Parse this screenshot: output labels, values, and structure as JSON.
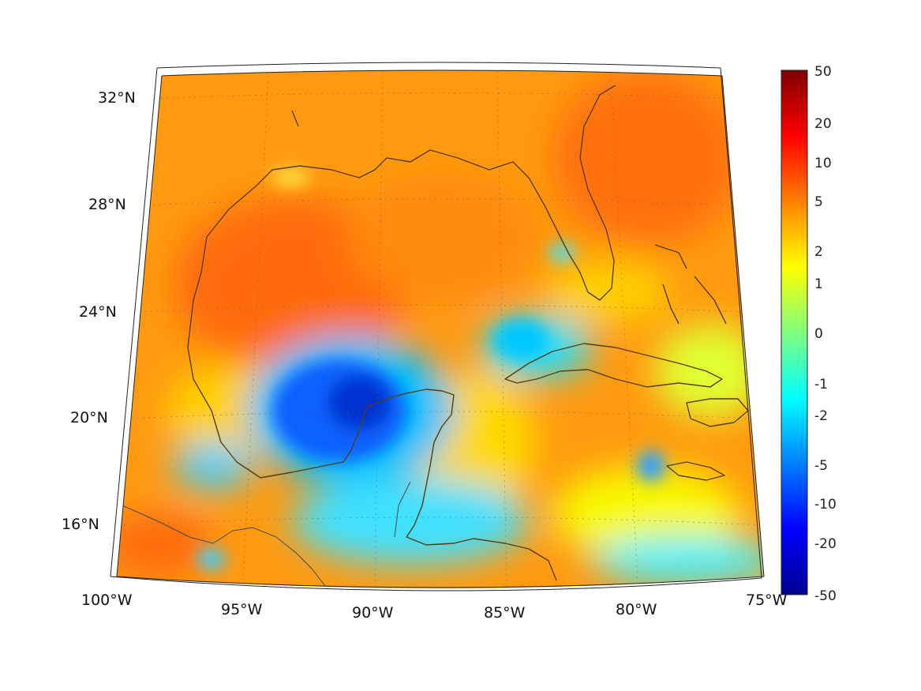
{
  "map": {
    "projection": "conic",
    "lon_range": [
      -100,
      -75
    ],
    "lat_range": [
      14.5,
      32.5
    ],
    "lon_ticks": [
      {
        "lon": -100,
        "label": "100°W"
      },
      {
        "lon": -95,
        "label": "95°W"
      },
      {
        "lon": -90,
        "label": "90°W"
      },
      {
        "lon": -85,
        "label": "85°W"
      },
      {
        "lon": -80,
        "label": "80°W"
      },
      {
        "lon": -75,
        "label": "75°W"
      }
    ],
    "lat_ticks": [
      {
        "lat": 16,
        "label": "16°N"
      },
      {
        "lat": 20,
        "label": "20°N"
      },
      {
        "lat": 24,
        "label": "24°N"
      },
      {
        "lat": 28,
        "label": "28°N"
      },
      {
        "lat": 32,
        "label": "32°N"
      }
    ],
    "grid": true,
    "coastline_color": "#5a3d10",
    "field_note": "Gridded data values shown as colored field over Gulf of Mexico and Caribbean"
  },
  "colorbar": {
    "colormap": "jet",
    "placement": "right",
    "tick_labels": [
      "50",
      "20",
      "10",
      "5",
      "2",
      "1",
      "0",
      "-1",
      "-2",
      "-5",
      "-10",
      "-20",
      "-50"
    ],
    "vmin": -50,
    "vmax": 50
  }
}
